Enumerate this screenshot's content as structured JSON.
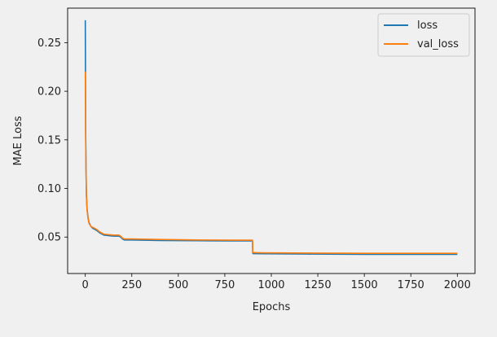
{
  "chart_data": {
    "type": "line",
    "xlabel": "Epochs",
    "ylabel": "MAE Loss",
    "xlim": [
      -95,
      2095
    ],
    "ylim": [
      0.0125,
      0.2855
    ],
    "xticks": [
      0,
      250,
      500,
      750,
      1000,
      1250,
      1500,
      1750,
      2000
    ],
    "xtick_labels": [
      "0",
      "250",
      "500",
      "750",
      "1000",
      "1250",
      "1500",
      "1750",
      "2000"
    ],
    "yticks": [
      0.05,
      0.1,
      0.15,
      0.2,
      0.25
    ],
    "ytick_labels": [
      "0.05",
      "0.10",
      "0.15",
      "0.20",
      "0.25"
    ],
    "grid": false,
    "legend_position": "upper right",
    "series": [
      {
        "name": "loss",
        "color": "#1f77b4",
        "x": [
          0,
          1,
          2,
          4,
          6,
          8,
          10,
          15,
          20,
          30,
          40,
          50,
          60,
          80,
          100,
          150,
          180,
          190,
          200,
          210,
          250,
          400,
          600,
          800,
          899,
          900,
          901,
          905,
          950,
          1200,
          1500,
          1800,
          2000
        ],
        "y": [
          0.273,
          0.22,
          0.16,
          0.12,
          0.095,
          0.085,
          0.078,
          0.07,
          0.065,
          0.061,
          0.059,
          0.058,
          0.057,
          0.054,
          0.052,
          0.051,
          0.051,
          0.05,
          0.048,
          0.047,
          0.047,
          0.0465,
          0.0462,
          0.046,
          0.046,
          0.034,
          0.033,
          0.033,
          0.0328,
          0.0325,
          0.0322,
          0.0322,
          0.0322
        ]
      },
      {
        "name": "val_loss",
        "color": "#ff7f0e",
        "x": [
          0,
          1,
          2,
          4,
          6,
          8,
          10,
          15,
          20,
          30,
          40,
          50,
          60,
          80,
          100,
          150,
          180,
          190,
          200,
          210,
          250,
          400,
          600,
          800,
          899,
          900,
          901,
          905,
          950,
          1200,
          1500,
          1800,
          2000
        ],
        "y": [
          0.22,
          0.2,
          0.15,
          0.115,
          0.092,
          0.083,
          0.077,
          0.069,
          0.064,
          0.061,
          0.06,
          0.059,
          0.058,
          0.055,
          0.053,
          0.052,
          0.052,
          0.051,
          0.049,
          0.048,
          0.048,
          0.0475,
          0.047,
          0.0468,
          0.0468,
          0.035,
          0.034,
          0.034,
          0.0338,
          0.0335,
          0.0333,
          0.0333,
          0.0333
        ]
      }
    ]
  }
}
